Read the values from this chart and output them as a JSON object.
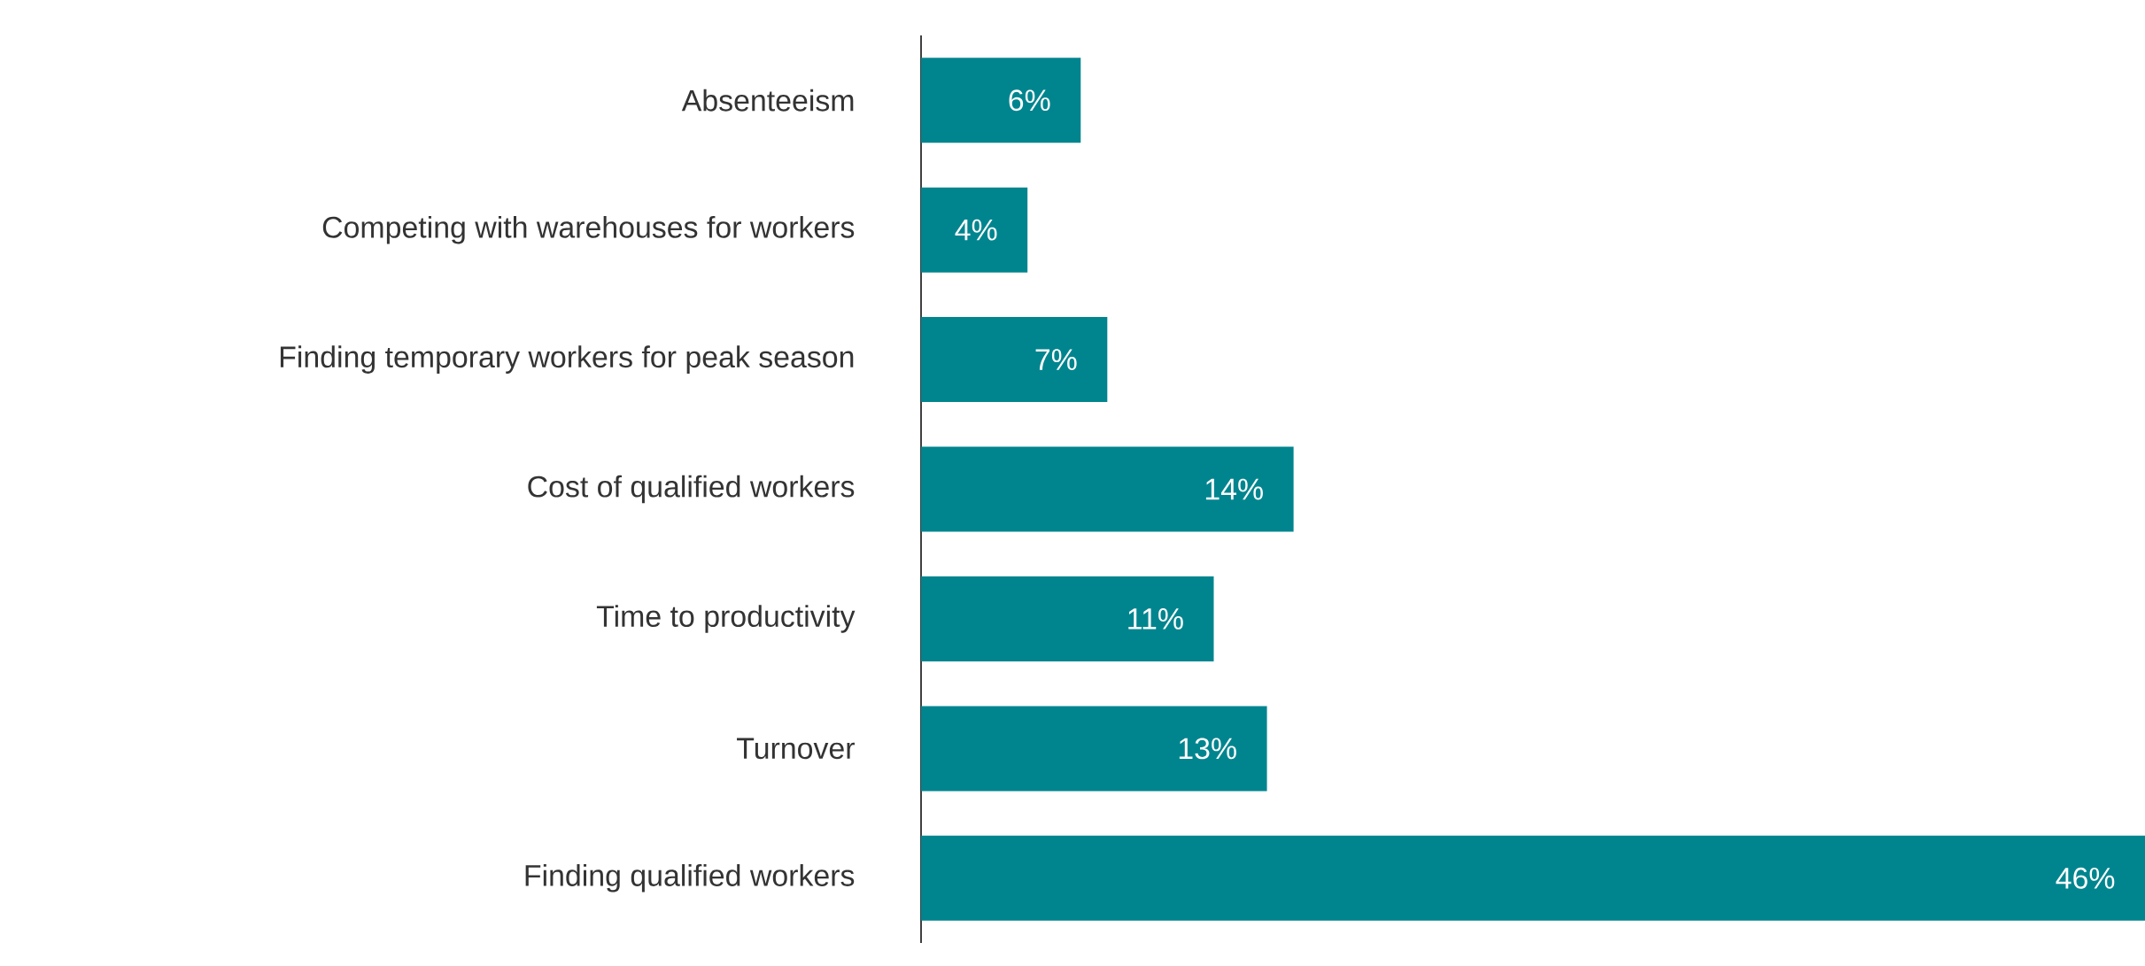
{
  "chart_data": {
    "type": "bar",
    "orientation": "horizontal",
    "categories": [
      "Absenteeism",
      "Competing with warehouses for workers",
      "Finding temporary workers for peak season",
      "Cost of qualified workers",
      "Time to productivity",
      "Turnover",
      "Finding qualified workers"
    ],
    "values": [
      6,
      4,
      7,
      14,
      11,
      13,
      46
    ],
    "value_labels": [
      "6%",
      "4%",
      "7%",
      "14%",
      "11%",
      "13%",
      "46%"
    ],
    "color": "#00858f",
    "grid": false
  }
}
